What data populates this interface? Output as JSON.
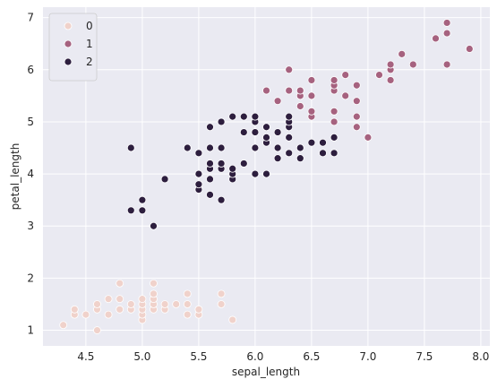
{
  "chart_data": {
    "type": "scatter",
    "xlabel": "sepal_length",
    "ylabel": "petal_length",
    "xlim": [
      4.12,
      8.08
    ],
    "ylim": [
      0.7,
      7.2
    ],
    "x_ticks": [
      4.5,
      5.0,
      5.5,
      6.0,
      6.5,
      7.0,
      7.5,
      8.0
    ],
    "y_ticks": [
      1,
      2,
      3,
      4,
      5,
      6,
      7
    ],
    "x_tick_labels": [
      "4.5",
      "5.0",
      "5.5",
      "6.0",
      "6.5",
      "7.0",
      "7.5",
      "8.0"
    ],
    "y_tick_labels": [
      "1",
      "2",
      "3",
      "4",
      "5",
      "6",
      "7"
    ],
    "grid": true,
    "background": "#eaeaf2",
    "legend_position": "top-left",
    "series": [
      {
        "name": "0",
        "color": "#f0d2cb",
        "points": [
          [
            4.3,
            1.1
          ],
          [
            4.4,
            1.3
          ],
          [
            4.4,
            1.4
          ],
          [
            4.5,
            1.3
          ],
          [
            4.6,
            1.0
          ],
          [
            4.6,
            1.4
          ],
          [
            4.6,
            1.5
          ],
          [
            4.7,
            1.3
          ],
          [
            4.7,
            1.6
          ],
          [
            4.8,
            1.4
          ],
          [
            4.8,
            1.6
          ],
          [
            4.8,
            1.9
          ],
          [
            4.9,
            1.4
          ],
          [
            4.9,
            1.5
          ],
          [
            5.0,
            1.2
          ],
          [
            5.0,
            1.3
          ],
          [
            5.0,
            1.4
          ],
          [
            5.0,
            1.5
          ],
          [
            5.0,
            1.6
          ],
          [
            5.1,
            1.4
          ],
          [
            5.1,
            1.5
          ],
          [
            5.1,
            1.6
          ],
          [
            5.1,
            1.7
          ],
          [
            5.1,
            1.9
          ],
          [
            5.2,
            1.4
          ],
          [
            5.2,
            1.5
          ],
          [
            5.3,
            1.5
          ],
          [
            5.4,
            1.3
          ],
          [
            5.4,
            1.5
          ],
          [
            5.4,
            1.7
          ],
          [
            5.5,
            1.3
          ],
          [
            5.5,
            1.4
          ],
          [
            5.7,
            1.5
          ],
          [
            5.7,
            1.7
          ],
          [
            5.8,
            1.2
          ]
        ]
      },
      {
        "name": "1",
        "color": "#a6627f",
        "points": [
          [
            6.1,
            5.6
          ],
          [
            6.2,
            5.4
          ],
          [
            6.3,
            5.6
          ],
          [
            6.3,
            6.0
          ],
          [
            6.4,
            5.3
          ],
          [
            6.4,
            5.5
          ],
          [
            6.4,
            5.6
          ],
          [
            6.5,
            5.1
          ],
          [
            6.5,
            5.2
          ],
          [
            6.5,
            5.5
          ],
          [
            6.5,
            5.8
          ],
          [
            6.7,
            5.0
          ],
          [
            6.7,
            5.2
          ],
          [
            6.7,
            5.6
          ],
          [
            6.7,
            5.7
          ],
          [
            6.7,
            5.8
          ],
          [
            6.8,
            5.5
          ],
          [
            6.8,
            5.9
          ],
          [
            6.9,
            4.9
          ],
          [
            6.9,
            5.1
          ],
          [
            6.9,
            5.4
          ],
          [
            6.9,
            5.7
          ],
          [
            7.0,
            4.7
          ],
          [
            7.1,
            5.9
          ],
          [
            7.2,
            5.8
          ],
          [
            7.2,
            6.0
          ],
          [
            7.2,
            6.1
          ],
          [
            7.3,
            6.3
          ],
          [
            7.4,
            6.1
          ],
          [
            7.6,
            6.6
          ],
          [
            7.7,
            6.1
          ],
          [
            7.7,
            6.7
          ],
          [
            7.7,
            6.9
          ],
          [
            7.9,
            6.4
          ]
        ]
      },
      {
        "name": "2",
        "color": "#2d1e3e",
        "points": [
          [
            4.9,
            3.3
          ],
          [
            4.9,
            4.5
          ],
          [
            5.0,
            3.3
          ],
          [
            5.0,
            3.5
          ],
          [
            5.1,
            3.0
          ],
          [
            5.2,
            3.9
          ],
          [
            5.4,
            4.5
          ],
          [
            5.5,
            3.7
          ],
          [
            5.5,
            3.8
          ],
          [
            5.5,
            4.0
          ],
          [
            5.5,
            4.4
          ],
          [
            5.6,
            3.6
          ],
          [
            5.6,
            3.9
          ],
          [
            5.6,
            4.1
          ],
          [
            5.6,
            4.2
          ],
          [
            5.6,
            4.5
          ],
          [
            5.6,
            4.9
          ],
          [
            5.7,
            3.5
          ],
          [
            5.7,
            4.1
          ],
          [
            5.7,
            4.2
          ],
          [
            5.7,
            4.5
          ],
          [
            5.7,
            5.0
          ],
          [
            5.8,
            3.9
          ],
          [
            5.8,
            4.0
          ],
          [
            5.8,
            4.1
          ],
          [
            5.8,
            5.1
          ],
          [
            5.9,
            4.2
          ],
          [
            5.9,
            4.8
          ],
          [
            5.9,
            5.1
          ],
          [
            6.0,
            4.0
          ],
          [
            6.0,
            4.5
          ],
          [
            6.0,
            4.8
          ],
          [
            6.0,
            5.0
          ],
          [
            6.0,
            5.1
          ],
          [
            6.1,
            4.0
          ],
          [
            6.1,
            4.6
          ],
          [
            6.1,
            4.7
          ],
          [
            6.1,
            4.9
          ],
          [
            6.2,
            4.3
          ],
          [
            6.2,
            4.5
          ],
          [
            6.2,
            4.8
          ],
          [
            6.3,
            4.4
          ],
          [
            6.3,
            4.7
          ],
          [
            6.3,
            4.9
          ],
          [
            6.3,
            5.0
          ],
          [
            6.3,
            5.1
          ],
          [
            6.4,
            4.3
          ],
          [
            6.4,
            4.5
          ],
          [
            6.5,
            4.6
          ],
          [
            6.6,
            4.4
          ],
          [
            6.6,
            4.6
          ],
          [
            6.7,
            4.4
          ],
          [
            6.7,
            4.7
          ]
        ]
      }
    ]
  }
}
